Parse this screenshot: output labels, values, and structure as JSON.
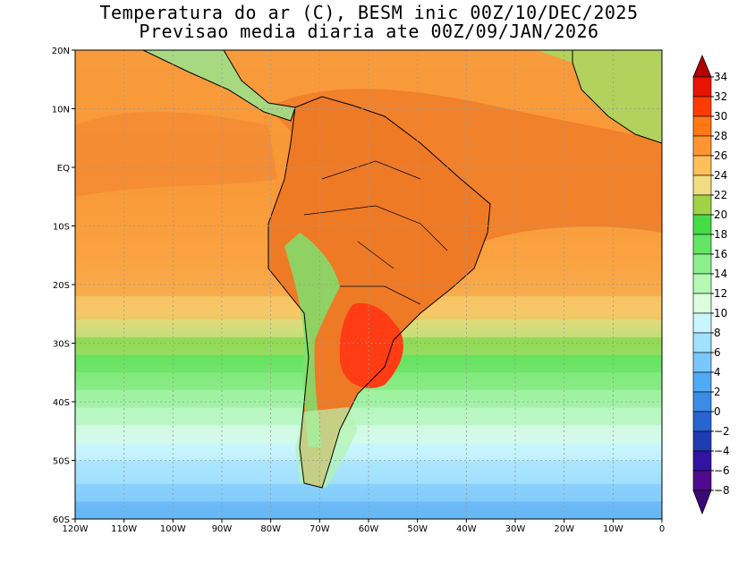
{
  "title": {
    "line1": "Temperatura do ar (C), BESM inic 00Z/10/DEC/2025",
    "line2": "Previsao media diaria ate 00Z/09/JAN/2026"
  },
  "map": {
    "lon_range": [
      -120,
      0
    ],
    "lat_range": [
      -60,
      20
    ],
    "lon_ticks": [
      {
        "value": -120,
        "label": "120W"
      },
      {
        "value": -110,
        "label": "110W"
      },
      {
        "value": -100,
        "label": "100W"
      },
      {
        "value": -90,
        "label": "90W"
      },
      {
        "value": -80,
        "label": "80W"
      },
      {
        "value": -70,
        "label": "70W"
      },
      {
        "value": -60,
        "label": "60W"
      },
      {
        "value": -50,
        "label": "50W"
      },
      {
        "value": -40,
        "label": "40W"
      },
      {
        "value": -30,
        "label": "30W"
      },
      {
        "value": -20,
        "label": "20W"
      },
      {
        "value": -10,
        "label": "10W"
      },
      {
        "value": 0,
        "label": "0"
      }
    ],
    "lat_ticks": [
      {
        "value": 20,
        "label": "20N"
      },
      {
        "value": 10,
        "label": "10N"
      },
      {
        "value": 0,
        "label": "EQ"
      },
      {
        "value": -10,
        "label": "10S"
      },
      {
        "value": -20,
        "label": "20S"
      },
      {
        "value": -30,
        "label": "30S"
      },
      {
        "value": -40,
        "label": "40S"
      },
      {
        "value": -50,
        "label": "50S"
      },
      {
        "value": -60,
        "label": "60S"
      }
    ],
    "temperature_bands": [
      {
        "lat": [
          -60,
          -57
        ],
        "value": 2
      },
      {
        "lat": [
          -57,
          -54
        ],
        "value": 4
      },
      {
        "lat": [
          -54,
          -50
        ],
        "value": 6
      },
      {
        "lat": [
          -50,
          -47
        ],
        "value": 8
      },
      {
        "lat": [
          -47,
          -44
        ],
        "value": 10
      },
      {
        "lat": [
          -44,
          -41
        ],
        "value": 12
      },
      {
        "lat": [
          -41,
          -38
        ],
        "value": 14
      },
      {
        "lat": [
          -38,
          -35
        ],
        "value": 16
      },
      {
        "lat": [
          -35,
          -32
        ],
        "value": 18
      },
      {
        "lat": [
          -32,
          -29
        ],
        "value": 20
      },
      {
        "lat": [
          -29,
          -26
        ],
        "value": 22
      },
      {
        "lat": [
          -26,
          -22
        ],
        "value": 24
      },
      {
        "lat": [
          -22,
          22
        ],
        "value": 26
      }
    ]
  },
  "colorbar": {
    "levels": [
      34,
      32,
      30,
      28,
      26,
      24,
      22,
      20,
      18,
      16,
      14,
      12,
      10,
      8,
      6,
      4,
      2,
      0,
      -2,
      -4,
      -6,
      -8
    ],
    "colors": [
      "#b40000",
      "#e61400",
      "#ff3c00",
      "#ff7814",
      "#ff9632",
      "#ffc05a",
      "#f0dc82",
      "#a0d246",
      "#46dc46",
      "#64e664",
      "#8cf08c",
      "#b4fab4",
      "#dcffdc",
      "#c8f5ff",
      "#a0e1ff",
      "#78c8ff",
      "#50aaf5",
      "#3c8ce6",
      "#2864d2",
      "#1e3cb4",
      "#3214a0",
      "#500a8c",
      "#3c0a78"
    ]
  },
  "colors": {
    "ocean_warm": "#f3a040",
    "land_hot": "#ee7a26",
    "coast": "#000000"
  }
}
